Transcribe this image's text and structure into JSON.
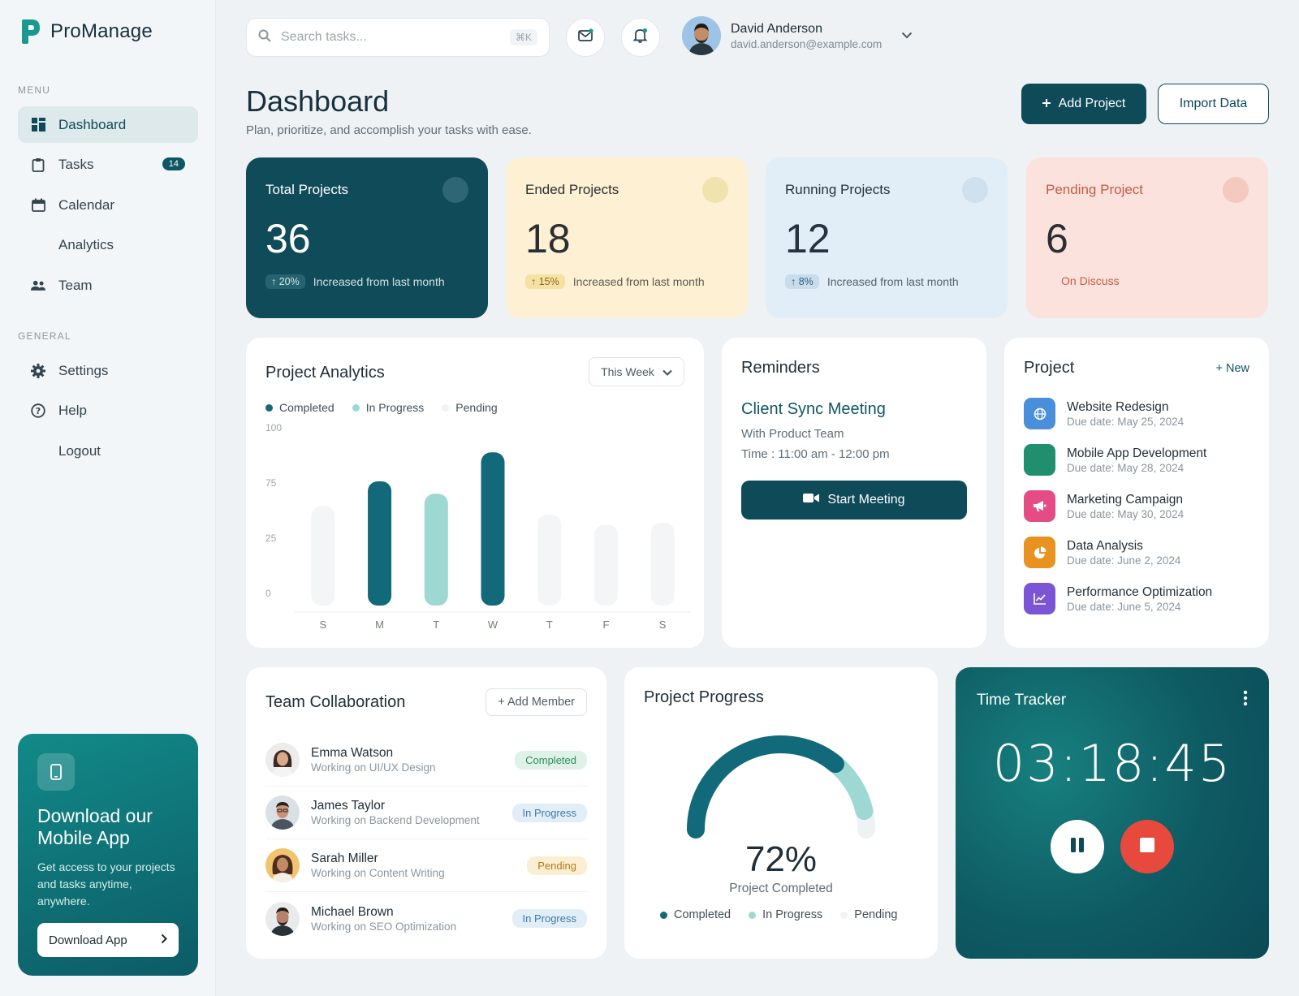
{
  "app": {
    "name": "ProManage"
  },
  "sidebar": {
    "menu_label": "MENU",
    "general_label": "GENERAL",
    "menu": [
      {
        "label": "Dashboard",
        "icon": "dashboard-icon",
        "active": true
      },
      {
        "label": "Tasks",
        "icon": "clipboard-icon",
        "badge": "14"
      },
      {
        "label": "Calendar",
        "icon": "calendar-icon"
      },
      {
        "label": "Analytics",
        "icon": ""
      },
      {
        "label": "Team",
        "icon": "team-icon"
      }
    ],
    "general": [
      {
        "label": "Settings",
        "icon": "gear-icon"
      },
      {
        "label": "Help",
        "icon": "help-icon"
      },
      {
        "label": "Logout",
        "icon": ""
      }
    ],
    "promo": {
      "title": "Download our Mobile App",
      "text": "Get access to your projects and tasks anytime, anywhere.",
      "button": "Download App"
    }
  },
  "header": {
    "search_placeholder": "Search tasks...",
    "shortcut": "⌘K",
    "user": {
      "name": "David Anderson",
      "email": "david.anderson@example.com"
    }
  },
  "page": {
    "title": "Dashboard",
    "subtitle": "Plan, prioritize, and accomplish your tasks with ease.",
    "add_project": "Add Project",
    "import_data": "Import Data"
  },
  "stats": [
    {
      "label": "Total Projects",
      "value": "36",
      "change": "20%",
      "note": "Increased from last month"
    },
    {
      "label": "Ended Projects",
      "value": "18",
      "change": "15%",
      "note": "Increased from last month"
    },
    {
      "label": "Running Projects",
      "value": "12",
      "change": "8%",
      "note": "Increased from last month"
    },
    {
      "label": "Pending Project",
      "value": "6",
      "note": "On Discuss"
    }
  ],
  "analytics": {
    "title": "Project Analytics",
    "range": "This Week",
    "legend": [
      "Completed",
      "In Progress",
      "Pending"
    ],
    "colors": {
      "completed": "#11697a",
      "in_progress": "#9ed8d3",
      "pending": "#f3f5f7"
    }
  },
  "chart_data": {
    "type": "bar",
    "categories": [
      "S",
      "M",
      "T",
      "W",
      "T",
      "F",
      "S"
    ],
    "y_ticks": [
      "100",
      "75",
      "25",
      "0"
    ],
    "values": [
      48,
      60,
      54,
      74,
      44,
      39,
      40
    ],
    "status": [
      "pending",
      "completed",
      "in_progress",
      "completed",
      "pending",
      "pending",
      "pending"
    ],
    "ylim": [
      0,
      80
    ]
  },
  "reminders": {
    "title": "Reminders",
    "event": "Client Sync Meeting",
    "with": "With Product Team",
    "time": "Time : 11:00 am - 12:00 pm",
    "button": "Start Meeting"
  },
  "projects": {
    "title": "Project",
    "new_label": "+ New",
    "items": [
      {
        "name": "Website Redesign",
        "due": "Due date: May 25, 2024",
        "color": "#4a8fdc",
        "icon": "globe-icon"
      },
      {
        "name": "Mobile App Development",
        "due": "Due date: May 28, 2024",
        "color": "#1f8f6e",
        "icon": "mobile-icon"
      },
      {
        "name": "Marketing Campaign",
        "due": "Due date: May 30, 2024",
        "color": "#e54c86",
        "icon": "megaphone-icon"
      },
      {
        "name": "Data Analysis",
        "due": "Due date: June 2, 2024",
        "color": "#e8921f",
        "icon": "pie-chart-icon"
      },
      {
        "name": "Performance Optimization",
        "due": "Due date: June 5, 2024",
        "color": "#7b55d6",
        "icon": "line-chart-icon"
      }
    ]
  },
  "team": {
    "title": "Team Collaboration",
    "add_member": "+ Add Member",
    "members": [
      {
        "name": "Emma Watson",
        "role": "Working on UI/UX Design",
        "status": "Completed",
        "status_bg": "#dff2e8",
        "status_fg": "#2f8a5c"
      },
      {
        "name": "James Taylor",
        "role": "Working on Backend Development",
        "status": "In Progress",
        "status_bg": "#e2eef7",
        "status_fg": "#3d78a8"
      },
      {
        "name": "Sarah Miller",
        "role": "Working on Content Writing",
        "status": "Pending",
        "status_bg": "#fbefd2",
        "status_fg": "#b07a1b"
      },
      {
        "name": "Michael Brown",
        "role": "Working on SEO Optimization",
        "status": "In Progress",
        "status_bg": "#e2eef7",
        "status_fg": "#3d78a8"
      }
    ]
  },
  "progress": {
    "title": "Project Progress",
    "percent_label": "72%",
    "percent": 72,
    "caption": "Project Completed",
    "legend": [
      "Completed",
      "In Progress",
      "Pending"
    ]
  },
  "tracker": {
    "title": "Time Tracker",
    "time": "03:18:45"
  }
}
